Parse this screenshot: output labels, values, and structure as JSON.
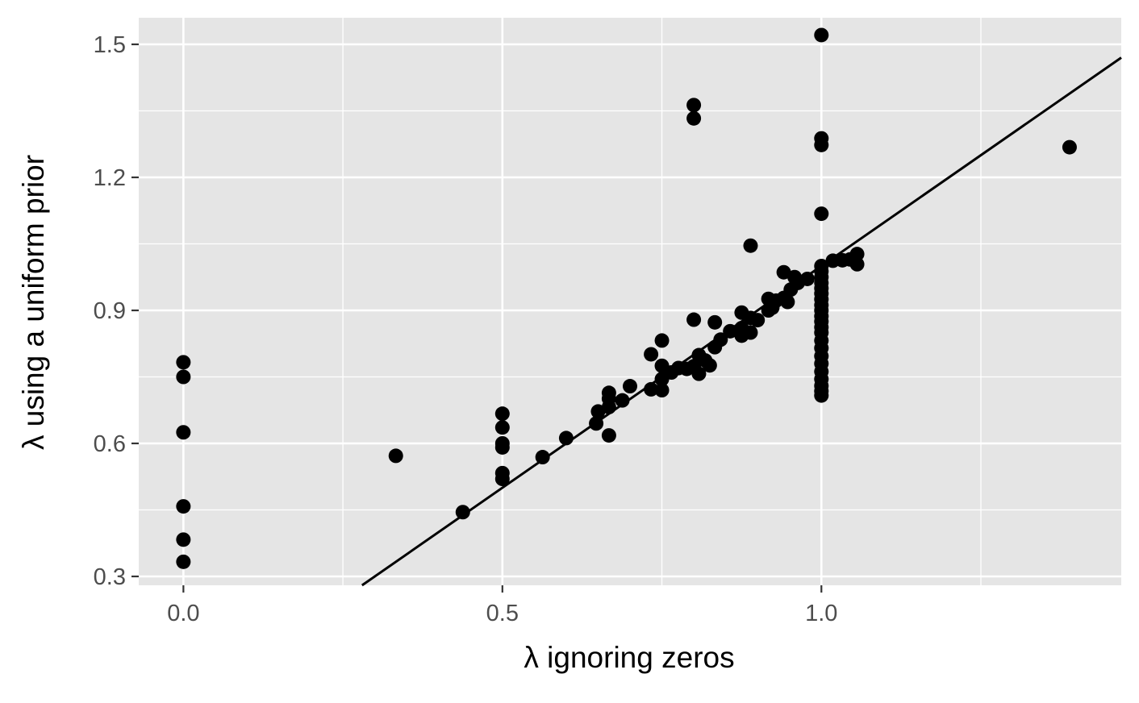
{
  "chart_data": {
    "type": "scatter",
    "title": "",
    "xlabel": "λ ignoring zeros",
    "ylabel": "λ using a uniform prior",
    "xlim": [
      -0.07,
      1.47
    ],
    "ylim": [
      0.28,
      1.56
    ],
    "x_ticks": [
      0.0,
      0.5,
      1.0
    ],
    "x_tick_labels": [
      "0.0",
      "0.5",
      "1.0"
    ],
    "x_minor_ticks": [
      0.25,
      0.75,
      1.25
    ],
    "y_ticks": [
      0.3,
      0.6,
      0.9,
      1.2,
      1.5
    ],
    "y_tick_labels": [
      "0.3",
      "0.6",
      "0.9",
      "1.2",
      "1.5"
    ],
    "y_minor_ticks": [
      0.45,
      0.75,
      1.05,
      1.35
    ],
    "grid": true,
    "panel_background": "#e5e5e5",
    "grid_color": "#ffffff",
    "point_color": "#000000",
    "line_color": "#000000",
    "reference_line": {
      "x": [
        0.28,
        1.47
      ],
      "y": [
        0.28,
        1.47
      ]
    },
    "points": [
      [
        0.0,
        0.783
      ],
      [
        0.0,
        0.75
      ],
      [
        0.0,
        0.625
      ],
      [
        0.0,
        0.458
      ],
      [
        0.0,
        0.383
      ],
      [
        0.0,
        0.333
      ],
      [
        0.333,
        0.572
      ],
      [
        0.438,
        0.445
      ],
      [
        0.5,
        0.667
      ],
      [
        0.5,
        0.636
      ],
      [
        0.5,
        0.6
      ],
      [
        0.5,
        0.591
      ],
      [
        0.5,
        0.533
      ],
      [
        0.5,
        0.52
      ],
      [
        0.563,
        0.569
      ],
      [
        0.6,
        0.612
      ],
      [
        0.647,
        0.645
      ],
      [
        0.65,
        0.672
      ],
      [
        0.667,
        0.714
      ],
      [
        0.667,
        0.701
      ],
      [
        0.667,
        0.682
      ],
      [
        0.667,
        0.618
      ],
      [
        0.688,
        0.697
      ],
      [
        0.7,
        0.729
      ],
      [
        0.733,
        0.801
      ],
      [
        0.733,
        0.722
      ],
      [
        0.75,
        0.832
      ],
      [
        0.75,
        0.775
      ],
      [
        0.75,
        0.72
      ],
      [
        0.75,
        0.745
      ],
      [
        0.765,
        0.76
      ],
      [
        0.776,
        0.77
      ],
      [
        0.789,
        0.768
      ],
      [
        0.8,
        0.879
      ],
      [
        0.8,
        0.774
      ],
      [
        0.8,
        1.363
      ],
      [
        0.8,
        1.333
      ],
      [
        0.808,
        0.799
      ],
      [
        0.808,
        0.757
      ],
      [
        0.818,
        0.787
      ],
      [
        0.825,
        0.776
      ],
      [
        0.833,
        0.873
      ],
      [
        0.833,
        0.817
      ],
      [
        0.842,
        0.834
      ],
      [
        0.857,
        0.853
      ],
      [
        0.875,
        0.895
      ],
      [
        0.875,
        0.86
      ],
      [
        0.875,
        0.843
      ],
      [
        0.889,
        1.046
      ],
      [
        0.889,
        0.883
      ],
      [
        0.889,
        0.85
      ],
      [
        0.9,
        0.878
      ],
      [
        0.917,
        0.926
      ],
      [
        0.917,
        0.9
      ],
      [
        0.923,
        0.906
      ],
      [
        0.929,
        0.922
      ],
      [
        0.941,
        0.986
      ],
      [
        0.941,
        0.928
      ],
      [
        0.947,
        0.919
      ],
      [
        0.952,
        0.947
      ],
      [
        0.958,
        0.975
      ],
      [
        0.963,
        0.962
      ],
      [
        0.978,
        0.971
      ],
      [
        1.0,
        1.521
      ],
      [
        1.0,
        1.288
      ],
      [
        1.0,
        1.273
      ],
      [
        1.0,
        1.118
      ],
      [
        1.0,
        1.0
      ],
      [
        1.0,
        0.988
      ],
      [
        1.0,
        0.975
      ],
      [
        1.0,
        0.962
      ],
      [
        1.0,
        0.95
      ],
      [
        1.0,
        0.938
      ],
      [
        1.0,
        0.925
      ],
      [
        1.0,
        0.912
      ],
      [
        1.0,
        0.9
      ],
      [
        1.0,
        0.887
      ],
      [
        1.0,
        0.875
      ],
      [
        1.0,
        0.862
      ],
      [
        1.0,
        0.85
      ],
      [
        1.0,
        0.832
      ],
      [
        1.0,
        0.815
      ],
      [
        1.0,
        0.797
      ],
      [
        1.0,
        0.78
      ],
      [
        1.0,
        0.762
      ],
      [
        1.0,
        0.745
      ],
      [
        1.0,
        0.73
      ],
      [
        1.0,
        0.718
      ],
      [
        1.0,
        0.708
      ],
      [
        1.018,
        1.012
      ],
      [
        1.033,
        1.013
      ],
      [
        1.045,
        1.015
      ],
      [
        1.056,
        1.027
      ],
      [
        1.056,
        1.004
      ],
      [
        1.389,
        1.268
      ]
    ]
  }
}
